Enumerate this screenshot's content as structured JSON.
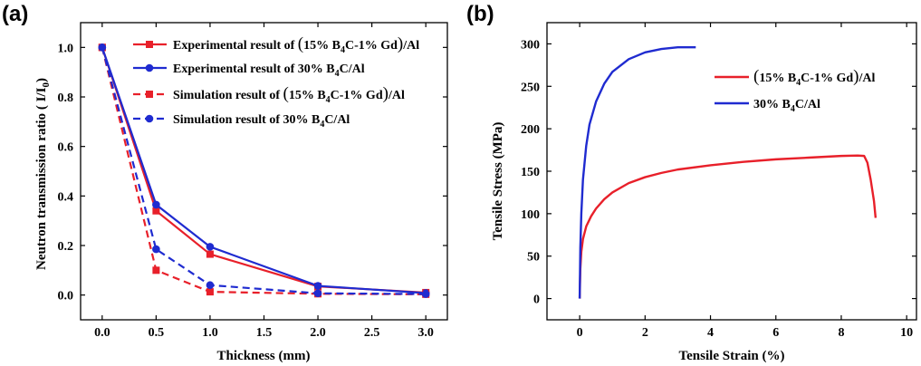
{
  "chart_data": [
    {
      "type": "line",
      "panel_label": "(a)",
      "xlabel": "Thickness (mm)",
      "ylabel": "Neutron transmission ratio ( I/I",
      "ylabel_sub": "0",
      "ylabel_end": ")",
      "xlim": [
        -0.2,
        3.2
      ],
      "ylim": [
        -0.1,
        1.1
      ],
      "xticks": [
        "0.0",
        "0.5",
        "1.0",
        "1.5",
        "2.0",
        "2.5",
        "3.0"
      ],
      "xtick_values": [
        0,
        0.5,
        1.0,
        1.5,
        2.0,
        2.5,
        3.0
      ],
      "yticks": [
        "0.0",
        "0.2",
        "0.4",
        "0.6",
        "0.8",
        "1.0"
      ],
      "ytick_values": [
        0,
        0.2,
        0.4,
        0.6,
        0.8,
        1.0
      ],
      "series": [
        {
          "name": "Experimental result of (15% B4C-1% Gd)/Al",
          "legend": [
            "Experimental result of ",
            "(",
            "15% B",
            "4",
            "C-1% Gd",
            ")",
            "/Al"
          ],
          "color": "#e8202a",
          "dash": false,
          "marker": "square",
          "x": [
            0,
            0.5,
            1.0,
            2.0,
            3.0
          ],
          "y": [
            1.0,
            0.34,
            0.165,
            0.035,
            0.01
          ]
        },
        {
          "name": "Experimental result of 30% B4C/Al",
          "legend": [
            "Experimental result of 30% B",
            "4",
            "C/Al"
          ],
          "color": "#1f2bd0",
          "dash": false,
          "marker": "circle",
          "x": [
            0,
            0.5,
            1.0,
            2.0,
            3.0
          ],
          "y": [
            1.0,
            0.365,
            0.195,
            0.037,
            0.008
          ]
        },
        {
          "name": "Simulation result of (15% B4C-1% Gd)/Al",
          "legend": [
            "Simulation result of ",
            "(",
            "15% B",
            "4",
            "C-1% Gd",
            ")",
            "/Al"
          ],
          "color": "#e8202a",
          "dash": true,
          "marker": "square",
          "x": [
            0,
            0.5,
            1.0,
            2.0,
            3.0
          ],
          "y": [
            1.0,
            0.1,
            0.013,
            0.005,
            0.003
          ]
        },
        {
          "name": "Simulation result of 30% B4C/Al",
          "legend": [
            "Simulation result of 30% B",
            "4",
            "C/Al"
          ],
          "color": "#1f2bd0",
          "dash": true,
          "marker": "circle",
          "x": [
            0,
            0.5,
            1.0,
            2.0,
            3.0
          ],
          "y": [
            1.0,
            0.185,
            0.04,
            0.007,
            0.004
          ]
        }
      ]
    },
    {
      "type": "line",
      "panel_label": "(b)",
      "xlabel": "Tensile Strain (%)",
      "ylabel": "Tensile Stress (MPa)",
      "xlim": [
        -1,
        10.3
      ],
      "ylim": [
        -25,
        325
      ],
      "xticks": [
        "0",
        "2",
        "4",
        "6",
        "8",
        "10"
      ],
      "xtick_values": [
        0,
        2,
        4,
        6,
        8,
        10
      ],
      "yticks": [
        "0",
        "50",
        "100",
        "150",
        "200",
        "250",
        "300"
      ],
      "ytick_values": [
        0,
        50,
        100,
        150,
        200,
        250,
        300
      ],
      "series": [
        {
          "name": "(15% B4C-1% Gd)/Al",
          "legend": [
            "(",
            "15% B",
            "4",
            "C-1% Gd",
            ")",
            "/Al"
          ],
          "color": "#e8202a",
          "x": [
            0,
            0.02,
            0.05,
            0.1,
            0.2,
            0.35,
            0.5,
            0.75,
            1.0,
            1.5,
            2.0,
            2.5,
            3.0,
            4.0,
            5.0,
            6.0,
            7.0,
            8.0,
            8.5,
            8.7,
            8.8,
            8.9,
            9.0,
            9.05
          ],
          "y": [
            0,
            35,
            55,
            70,
            85,
            97,
            106,
            117,
            125,
            136,
            143,
            148,
            152,
            157,
            161,
            164,
            166,
            168,
            168.5,
            168,
            160,
            140,
            115,
            95
          ]
        },
        {
          "name": "30% B4C/Al",
          "legend": [
            "30% B",
            "4",
            "C/Al"
          ],
          "color": "#1f2bd0",
          "x": [
            0,
            0.02,
            0.05,
            0.1,
            0.2,
            0.3,
            0.5,
            0.75,
            1.0,
            1.5,
            2.0,
            2.5,
            3.0,
            3.55
          ],
          "y": [
            0,
            60,
            100,
            140,
            180,
            205,
            232,
            253,
            267,
            282,
            290,
            294,
            296,
            296
          ]
        }
      ]
    }
  ]
}
